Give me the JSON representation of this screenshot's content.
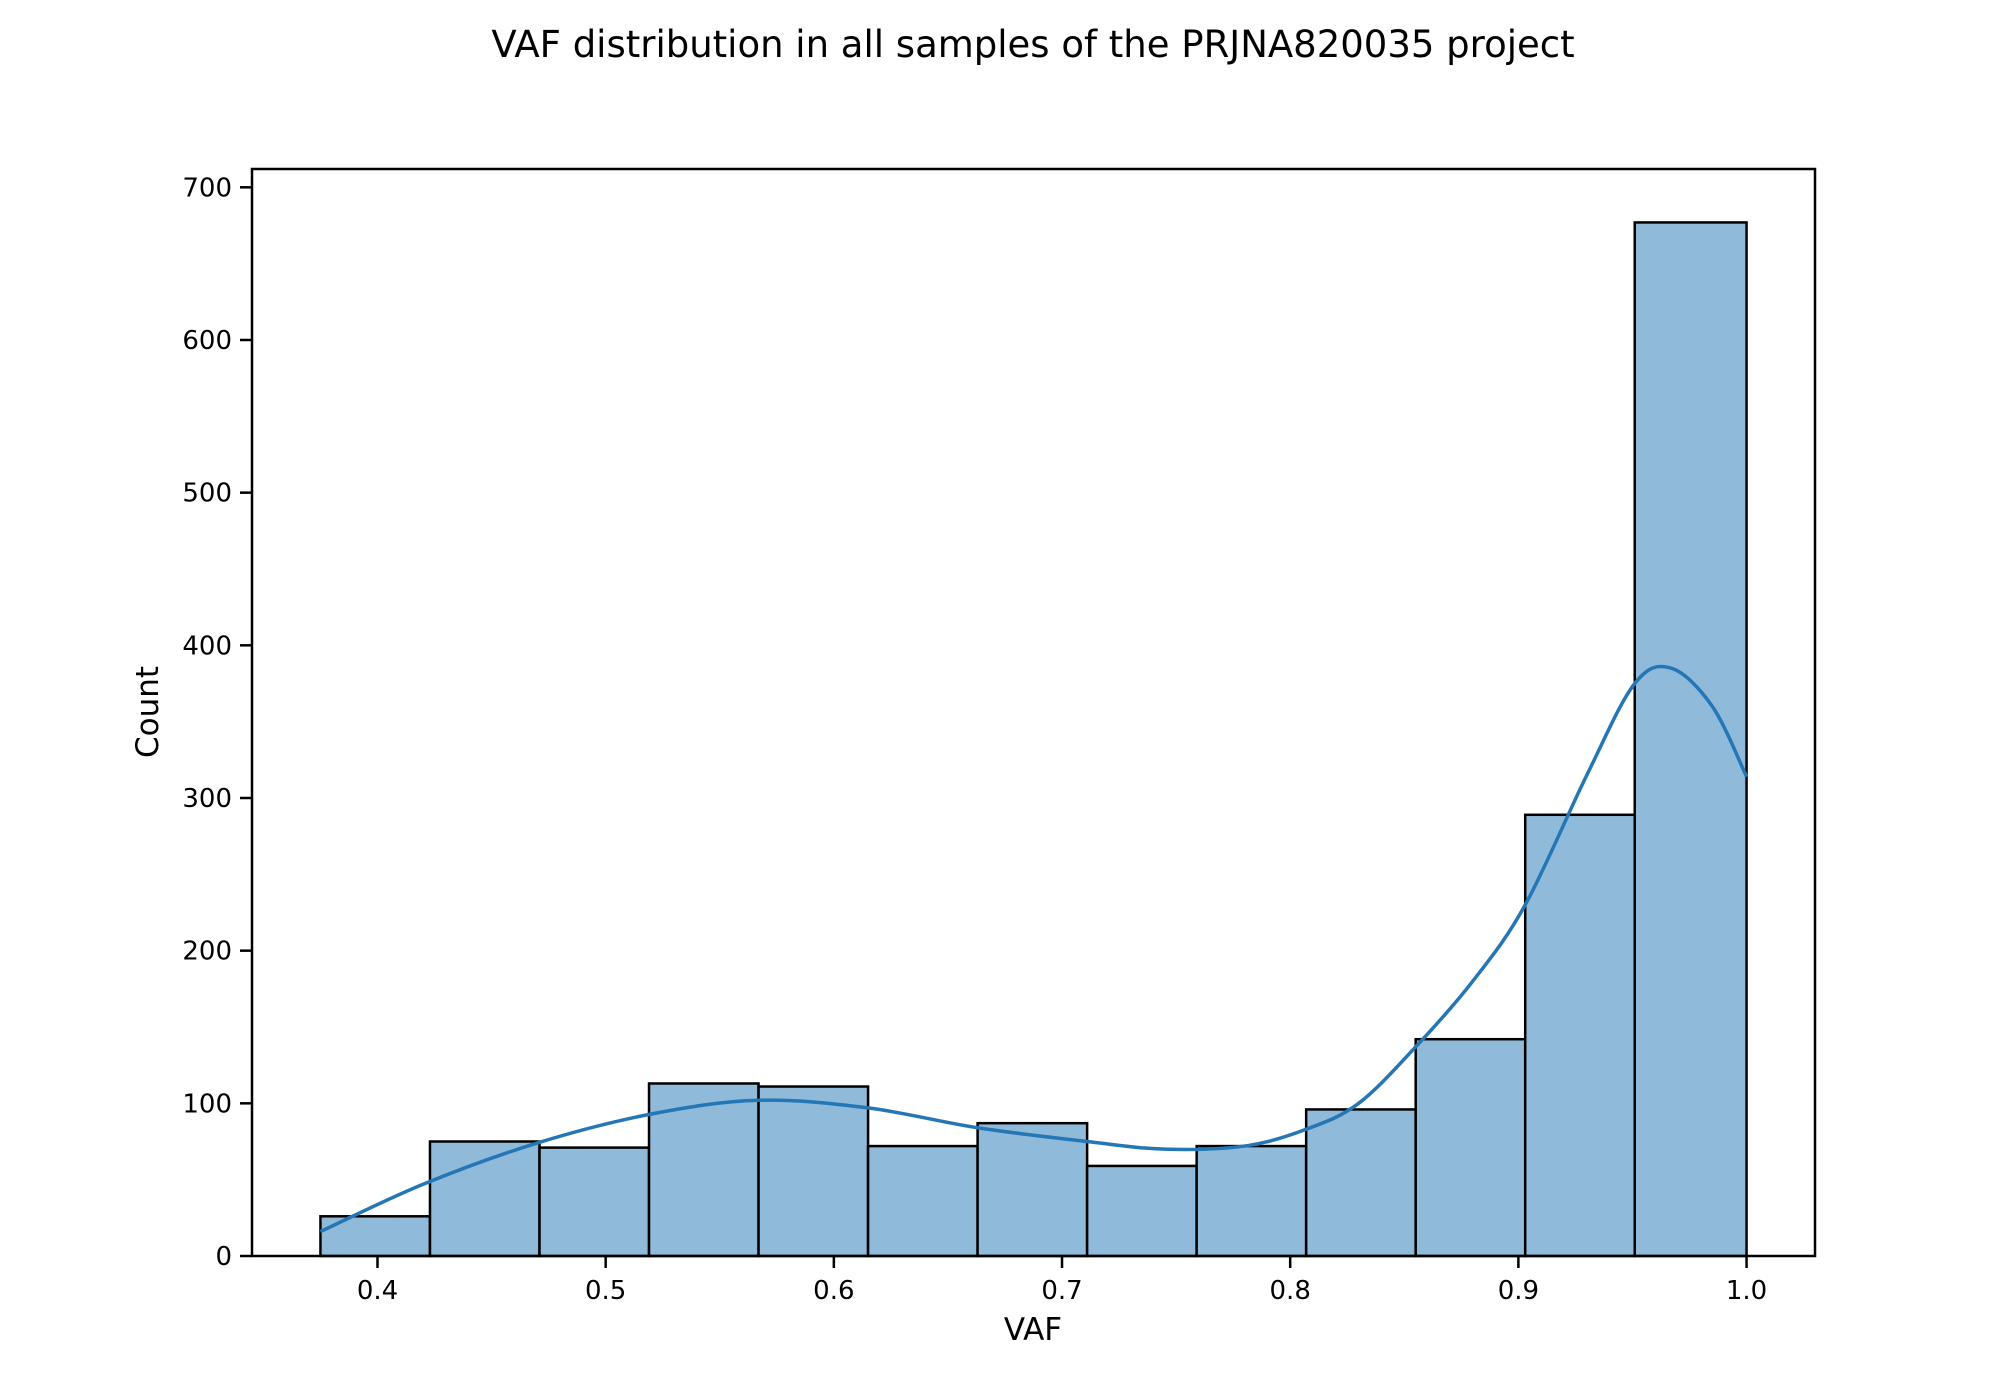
{
  "chart_data": {
    "type": "bar",
    "title": "VAF distribution in all samples of the PRJNA820035 project",
    "xlabel": "VAF",
    "ylabel": "Count",
    "xlim": [
      0.345,
      1.03
    ],
    "ylim": [
      0,
      712
    ],
    "x_ticks": [
      "0.4",
      "0.5",
      "0.6",
      "0.7",
      "0.8",
      "0.9",
      "1.0"
    ],
    "y_ticks": [
      "0",
      "100",
      "200",
      "300",
      "400",
      "500",
      "600",
      "700"
    ],
    "bin_edges": [
      0.375,
      0.423,
      0.471,
      0.519,
      0.567,
      0.615,
      0.663,
      0.711,
      0.759,
      0.807,
      0.855,
      0.903,
      0.951,
      1.0
    ],
    "values": [
      26,
      75,
      71,
      113,
      111,
      72,
      87,
      59,
      72,
      96,
      142,
      289,
      677
    ],
    "kde": {
      "x": [
        0.375,
        0.42,
        0.47,
        0.52,
        0.567,
        0.615,
        0.663,
        0.711,
        0.745,
        0.78,
        0.807,
        0.83,
        0.855,
        0.88,
        0.903,
        0.93,
        0.951,
        0.967,
        0.985,
        1.0
      ],
      "y": [
        16,
        47,
        74,
        93,
        102,
        97,
        84,
        75,
        70,
        72,
        83,
        100,
        137,
        180,
        230,
        315,
        375,
        385,
        360,
        314
      ]
    },
    "colors": {
      "bar_fill": "#8fbada",
      "bar_edge": "#000000",
      "kde_line": "#2476b4"
    },
    "grid": false,
    "legend": "none"
  }
}
